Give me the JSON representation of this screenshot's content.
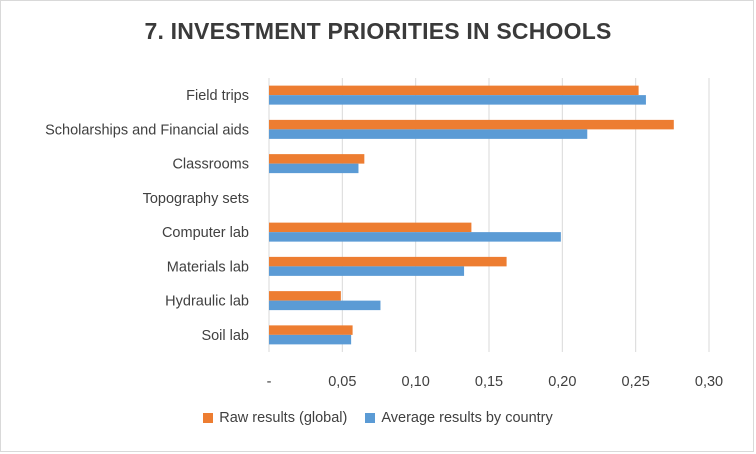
{
  "chart_data": {
    "type": "bar",
    "orientation": "horizontal",
    "title": "7. INVESTMENT PRIORITIES  IN SCHOOLS",
    "categories": [
      "Field trips",
      "Scholarships and Financial aids",
      "Classrooms",
      "Topography sets",
      "Computer lab",
      "Materials lab",
      "Hydraulic lab",
      "Soil lab"
    ],
    "series": [
      {
        "name": "Raw results (global)",
        "color": "#ed7d31",
        "values": [
          0.252,
          0.276,
          0.065,
          0.0,
          0.138,
          0.162,
          0.049,
          0.057
        ]
      },
      {
        "name": "Average results by country",
        "color": "#5b9bd5",
        "values": [
          0.257,
          0.217,
          0.061,
          0.0,
          0.199,
          0.133,
          0.076,
          0.056
        ]
      }
    ],
    "xlim": [
      0,
      0.3
    ],
    "xticks": [
      "-",
      "0,05",
      "0,10",
      "0,15",
      "0,20",
      "0,25",
      "0,30"
    ],
    "grid": true,
    "legend": "bottom"
  }
}
